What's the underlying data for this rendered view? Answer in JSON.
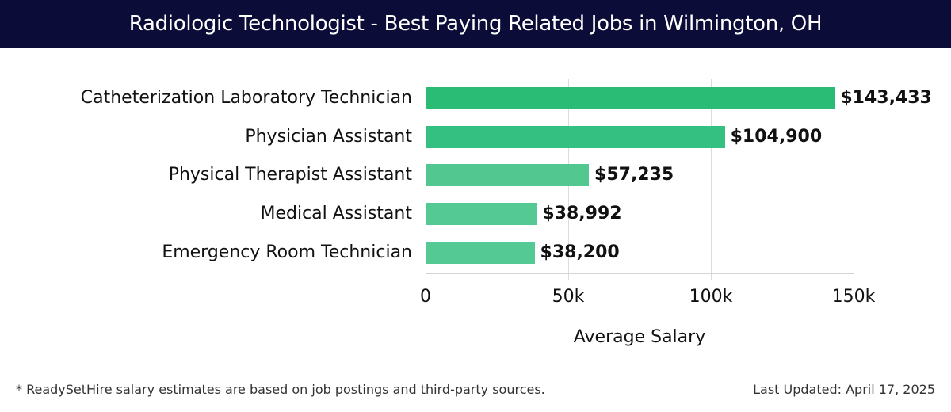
{
  "header": {
    "title": "Radiologic Technologist - Best Paying Related Jobs in Wilmington, OH"
  },
  "chart_data": {
    "type": "bar",
    "orientation": "horizontal",
    "title": "Radiologic Technologist - Best Paying Related Jobs in Wilmington, OH",
    "categories": [
      "Catheterization Laboratory Technician",
      "Physician Assistant",
      "Physical Therapist Assistant",
      "Medical Assistant",
      "Emergency Room Technician"
    ],
    "values": [
      143433,
      104900,
      57235,
      38992,
      38200
    ],
    "value_labels": [
      "$143,433",
      "$104,900",
      "$57,235",
      "$38,992",
      "$38,200"
    ],
    "bar_colors": [
      "#2abb75",
      "#34c080",
      "#52c890",
      "#55c994",
      "#55c994"
    ],
    "xlabel": "Average Salary",
    "ylabel": "",
    "xlim": [
      0,
      150000
    ],
    "xticks": [
      0,
      50000,
      100000,
      150000
    ],
    "xtick_labels": [
      "0",
      "50k",
      "100k",
      "150k"
    ],
    "grid": true,
    "legend": "none"
  },
  "footer": {
    "note": "* ReadySetHire salary estimates are based on job postings and third-party sources.",
    "updated": "Last Updated: April 17, 2025"
  }
}
